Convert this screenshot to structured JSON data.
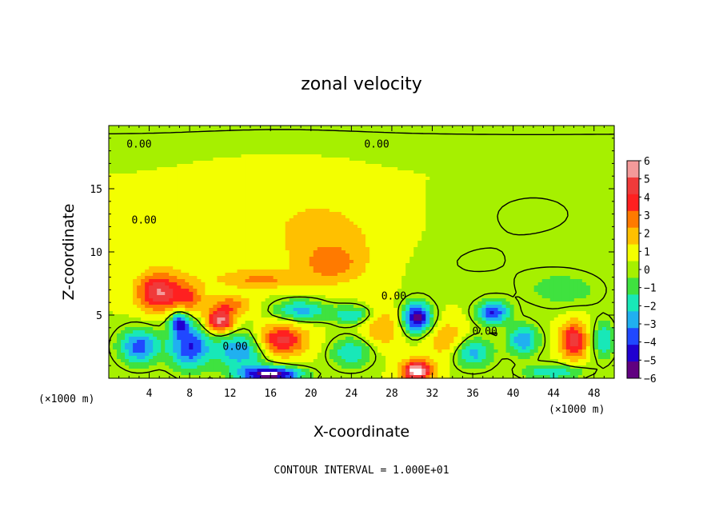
{
  "chart_data": {
    "type": "heatmap",
    "title": "zonal velocity",
    "xlabel": "X-coordinate",
    "ylabel": "Z-coordinate",
    "x_unit_label": "(×1000 m)",
    "x_unit_label_right": "(×1000 m)",
    "footer": "CONTOUR INTERVAL = 1.000E+01",
    "xlim": [
      0,
      50
    ],
    "ylim": [
      0,
      20
    ],
    "xticks": [
      4,
      8,
      12,
      16,
      20,
      24,
      28,
      32,
      36,
      40,
      44,
      48
    ],
    "xtick_labels": [
      "4",
      "8",
      "12",
      "16",
      "20",
      "24",
      "28",
      "32",
      "36",
      "40",
      "44",
      "48"
    ],
    "yticks": [
      5,
      10,
      15
    ],
    "ytick_labels": [
      "5",
      "10",
      "15"
    ],
    "colorbar": {
      "levels": [
        6,
        5,
        4,
        3,
        2,
        1,
        0,
        -1,
        -2,
        -3,
        -4,
        -5,
        -6
      ],
      "labels": [
        "6",
        "5",
        "4",
        "3",
        "2",
        "1",
        "0",
        "−1",
        "−2",
        "−3",
        "−4",
        "−5",
        "−6"
      ],
      "colors": [
        "#f39a9a",
        "#f03a3a",
        "#ff2020",
        "#ff7a00",
        "#ffc000",
        "#f3ff00",
        "#a6f000",
        "#3fe23f",
        "#18e8b8",
        "#20b0f0",
        "#2048ff",
        "#2000d0",
        "#600080"
      ]
    },
    "contour_labels": [
      {
        "text": "0.00",
        "x": 3.0,
        "z": 18.5
      },
      {
        "text": "0.00",
        "x": 26.5,
        "z": 18.5
      },
      {
        "text": "0.00",
        "x": 3.5,
        "z": 12.5
      },
      {
        "text": "0.00",
        "x": 12.5,
        "z": 2.5
      },
      {
        "text": "0.00",
        "x": 28.2,
        "z": 6.5
      },
      {
        "text": "0.00",
        "x": 37.2,
        "z": 3.7
      }
    ],
    "background_value": 0.5,
    "features": [
      {
        "x": 17,
        "z": 15,
        "sx": 9,
        "sz": 3,
        "v": 0.6
      },
      {
        "x": 10,
        "z": 11,
        "sx": 6,
        "sz": 3,
        "v": 0.9
      },
      {
        "x": 22,
        "z": 11,
        "sx": 6,
        "sz": 3,
        "v": 1.2
      },
      {
        "x": 42,
        "z": 13,
        "sx": 8,
        "sz": 3,
        "v": -0.6
      },
      {
        "x": 45,
        "z": 7,
        "sx": 4,
        "sz": 1.5,
        "v": -1.5
      },
      {
        "x": 36,
        "z": 9,
        "sx": 6,
        "sz": 2,
        "v": -0.5
      },
      {
        "x": 5,
        "z": 6.8,
        "sx": 2.2,
        "sz": 1.5,
        "v": 5.0
      },
      {
        "x": 8,
        "z": 6.3,
        "sx": 1.5,
        "sz": 1.3,
        "v": 2.5
      },
      {
        "x": 11,
        "z": 4.5,
        "sx": 1.4,
        "sz": 0.9,
        "v": 5.5
      },
      {
        "x": 12,
        "z": 5.8,
        "sx": 2,
        "sz": 0.8,
        "v": 2.5
      },
      {
        "x": 17,
        "z": 3,
        "sx": 2.5,
        "sz": 1.2,
        "v": 4.5
      },
      {
        "x": 15,
        "z": 7.8,
        "sx": 4,
        "sz": 0.7,
        "v": 2.0
      },
      {
        "x": 22,
        "z": 9,
        "sx": 3,
        "sz": 1.5,
        "v": 2.0
      },
      {
        "x": 46,
        "z": 3,
        "sx": 1.3,
        "sz": 1.5,
        "v": 4.5
      },
      {
        "x": 27,
        "z": 4,
        "sx": 2,
        "sz": 1.5,
        "v": 2.0
      },
      {
        "x": 33.5,
        "z": 3,
        "sx": 2,
        "sz": 1.5,
        "v": 2.0
      },
      {
        "x": 3,
        "z": 2.5,
        "sx": 2,
        "sz": 1.4,
        "v": -4.5
      },
      {
        "x": 8,
        "z": 2.5,
        "sx": 2,
        "sz": 1.8,
        "v": -5.0
      },
      {
        "x": 7,
        "z": 4.4,
        "sx": 1,
        "sz": 0.9,
        "v": -4.5
      },
      {
        "x": 13,
        "z": 2.2,
        "sx": 2.5,
        "sz": 1.5,
        "v": -4.0
      },
      {
        "x": 19,
        "z": 5.4,
        "sx": 2.5,
        "sz": 0.8,
        "v": -3.5
      },
      {
        "x": 24,
        "z": 5,
        "sx": 2,
        "sz": 0.7,
        "v": -3.0
      },
      {
        "x": 24,
        "z": 2,
        "sx": 2,
        "sz": 1.2,
        "v": -3.0
      },
      {
        "x": 30.5,
        "z": 4.8,
        "sx": 1.4,
        "sz": 1.2,
        "v": -6.5
      },
      {
        "x": 38,
        "z": 5.2,
        "sx": 1.6,
        "sz": 0.9,
        "v": -5.0
      },
      {
        "x": 41,
        "z": 3,
        "sx": 1.5,
        "sz": 1.2,
        "v": -4.0
      },
      {
        "x": 36,
        "z": 2,
        "sx": 2,
        "sz": 1.2,
        "v": -3.5
      },
      {
        "x": 49,
        "z": 3,
        "sx": 1,
        "sz": 1.5,
        "v": -3.0
      },
      {
        "x": 16,
        "z": 0.3,
        "sx": 3,
        "sz": 0.6,
        "v": -7.0
      },
      {
        "x": 30.5,
        "z": 0.6,
        "sx": 1.5,
        "sz": 0.8,
        "v": 6.5
      },
      {
        "x": 44,
        "z": 0.5,
        "sx": 3,
        "sz": 0.6,
        "v": -3.0
      }
    ]
  }
}
